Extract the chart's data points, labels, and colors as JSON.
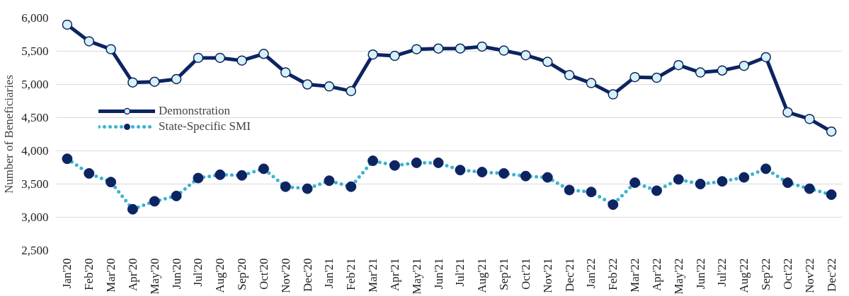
{
  "chart_data": {
    "type": "line",
    "ylabel": "Number of Beneficiaries",
    "categories": [
      "Jan'20",
      "Feb'20",
      "Mar'20",
      "Apr'20",
      "May'20",
      "Jun'20",
      "Jul'20",
      "Aug'20",
      "Sep'20",
      "Oct'20",
      "Nov'20",
      "Dec'20",
      "Jan'21",
      "Feb'21",
      "Mar'21",
      "Apr'21",
      "May'21",
      "Jun'21",
      "Jul'21",
      "Aug'21",
      "Sep'21",
      "Oct'21",
      "Nov'21",
      "Dec'21",
      "Jan'22",
      "Feb'22",
      "Mar'22",
      "Apr'22",
      "May'22",
      "Jun'22",
      "Jul'22",
      "Aug'22",
      "Sep'22",
      "Oct'22",
      "Nov'22",
      "Dec'22"
    ],
    "series": [
      {
        "name": "Demonstration",
        "color": "#0c2461",
        "marker": "circle",
        "line_style": "solid",
        "values": [
          5900,
          5650,
          5530,
          5030,
          5040,
          5080,
          5400,
          5400,
          5360,
          5460,
          5180,
          5000,
          4970,
          4900,
          5450,
          5430,
          5530,
          5540,
          5540,
          5570,
          5510,
          5440,
          5340,
          5140,
          5020,
          4850,
          5110,
          5100,
          5290,
          5180,
          5210,
          5280,
          5410,
          4580,
          4480,
          4290
        ]
      },
      {
        "name": "State-Specific SMI",
        "color": "#3bb3d0",
        "marker": "circle",
        "line_style": "dotted",
        "values": [
          3880,
          3660,
          3530,
          3120,
          3240,
          3320,
          3590,
          3640,
          3630,
          3730,
          3460,
          3430,
          3550,
          3460,
          3850,
          3780,
          3820,
          3820,
          3710,
          3680,
          3660,
          3620,
          3600,
          3410,
          3380,
          3190,
          3520,
          3400,
          3570,
          3500,
          3540,
          3600,
          3730,
          3520,
          3430,
          3340
        ]
      }
    ],
    "ylim": [
      2500,
      6000
    ],
    "yticks": [
      {
        "value": 2500,
        "label": "2,500"
      },
      {
        "value": 3000,
        "label": "3,000"
      },
      {
        "value": 3500,
        "label": "3,500"
      },
      {
        "value": 4000,
        "label": "4,000"
      },
      {
        "value": 4500,
        "label": "4,500"
      },
      {
        "value": 5000,
        "label": "5,000"
      },
      {
        "value": 5500,
        "label": "5,500"
      },
      {
        "value": 6000,
        "label": "6,000"
      }
    ],
    "grid": "y",
    "legend": "left"
  }
}
